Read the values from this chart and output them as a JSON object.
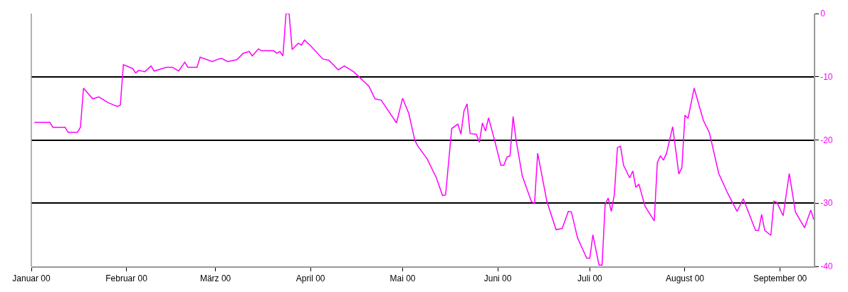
{
  "chart_data": {
    "type": "line",
    "x": [
      "2000-01-02",
      "2000-01-07",
      "2000-01-08",
      "2000-01-12",
      "2000-01-13",
      "2000-01-16",
      "2000-01-17",
      "2000-01-18",
      "2000-01-21",
      "2000-01-23",
      "2000-01-26",
      "2000-01-29",
      "2000-01-30",
      "2000-01-31",
      "2000-02-03",
      "2000-02-04",
      "2000-02-05",
      "2000-02-07",
      "2000-02-09",
      "2000-02-10",
      "2000-02-14",
      "2000-02-16",
      "2000-02-18",
      "2000-02-20",
      "2000-02-21",
      "2000-02-24",
      "2000-02-25",
      "2000-02-29",
      "2000-03-02",
      "2000-03-03",
      "2000-03-05",
      "2000-03-08",
      "2000-03-10",
      "2000-03-12",
      "2000-03-13",
      "2000-03-15",
      "2000-03-16",
      "2000-03-20",
      "2000-03-21",
      "2000-03-22",
      "2000-03-23",
      "2000-03-24",
      "2000-03-25",
      "2000-03-26",
      "2000-03-28",
      "2000-03-29",
      "2000-03-30",
      "2000-04-01",
      "2000-04-05",
      "2000-04-07",
      "2000-04-10",
      "2000-04-12",
      "2000-04-15",
      "2000-04-20",
      "2000-04-22",
      "2000-04-24",
      "2000-04-29",
      "2000-05-01",
      "2000-05-03",
      "2000-05-05",
      "2000-05-06",
      "2000-05-09",
      "2000-05-12",
      "2000-05-14",
      "2000-05-15",
      "2000-05-17",
      "2000-05-19",
      "2000-05-20",
      "2000-05-21",
      "2000-05-22",
      "2000-05-23",
      "2000-05-25",
      "2000-05-26",
      "2000-05-27",
      "2000-05-28",
      "2000-05-29",
      "2000-05-31",
      "2000-06-02",
      "2000-06-03",
      "2000-06-04",
      "2000-06-05",
      "2000-06-06",
      "2000-06-07",
      "2000-06-09",
      "2000-06-12",
      "2000-06-13",
      "2000-06-14",
      "2000-06-17",
      "2000-06-20",
      "2000-06-22",
      "2000-06-24",
      "2000-06-25",
      "2000-06-27",
      "2000-06-30",
      "2000-07-01",
      "2000-07-02",
      "2000-07-04",
      "2000-07-05",
      "2000-07-06",
      "2000-07-07",
      "2000-07-08",
      "2000-07-09",
      "2000-07-10",
      "2000-07-11",
      "2000-07-12",
      "2000-07-14",
      "2000-07-15",
      "2000-07-16",
      "2000-07-17",
      "2000-07-19",
      "2000-07-22",
      "2000-07-23",
      "2000-07-24",
      "2000-07-25",
      "2000-07-26",
      "2000-07-28",
      "2000-07-29",
      "2000-07-30",
      "2000-07-31",
      "2000-08-01",
      "2000-08-02",
      "2000-08-04",
      "2000-08-07",
      "2000-08-09",
      "2000-08-12",
      "2000-08-15",
      "2000-08-18",
      "2000-08-20",
      "2000-08-24",
      "2000-08-25",
      "2000-08-26",
      "2000-08-27",
      "2000-08-29",
      "2000-08-30",
      "2000-08-31",
      "2000-09-02",
      "2000-09-04",
      "2000-09-06",
      "2000-09-09",
      "2000-09-11",
      "2000-09-12"
    ],
    "series": [
      {
        "color": "#ff00ff",
        "values": [
          -17.2,
          -17.2,
          -18.0,
          -18.0,
          -18.8,
          -18.8,
          -18.0,
          -11.8,
          -13.5,
          -13.2,
          -14.1,
          -14.7,
          -14.5,
          -8.1,
          -8.7,
          -9.4,
          -9.0,
          -9.2,
          -8.3,
          -9.1,
          -8.5,
          -8.5,
          -9.1,
          -7.7,
          -8.5,
          -8.5,
          -6.9,
          -7.6,
          -7.2,
          -7.1,
          -7.6,
          -7.3,
          -6.3,
          -6.0,
          -6.7,
          -5.6,
          -5.9,
          -5.9,
          -6.3,
          -6.0,
          -6.7,
          0,
          0,
          -5.7,
          -4.7,
          -5.0,
          -4.2,
          -5.1,
          -7.2,
          -7.4,
          -8.9,
          -8.3,
          -9.2,
          -11.5,
          -13.5,
          -13.7,
          -17.3,
          -13.4,
          -15.8,
          -20.1,
          -21.0,
          -23.0,
          -26.0,
          -28.8,
          -28.7,
          -18.2,
          -17.5,
          -19.1,
          -15.4,
          -14.3,
          -19.0,
          -19.1,
          -20.4,
          -17.3,
          -18.6,
          -16.5,
          -20.1,
          -24.0,
          -24.0,
          -22.7,
          -22.5,
          -16.3,
          -20.1,
          -25.7,
          -29.8,
          -30.0,
          -22.1,
          -29.7,
          -34.2,
          -34.0,
          -31.3,
          -31.4,
          -35.5,
          -38.7,
          -38.7,
          -35.0,
          -39.8,
          -39.8,
          -30.2,
          -29.2,
          -31.3,
          -28.6,
          -21.2,
          -21.0,
          -24.0,
          -26.0,
          -24.9,
          -27.5,
          -27.0,
          -30.5,
          -32.8,
          -23.6,
          -22.5,
          -23.2,
          -22.1,
          -17.9,
          -21.6,
          -25.4,
          -24.4,
          -16.1,
          -16.6,
          -11.8,
          -16.9,
          -18.9,
          -25.3,
          -28.5,
          -31.3,
          -29.3,
          -34.3,
          -34.3,
          -31.8,
          -34.3,
          -35.1,
          -29.7,
          -29.9,
          -32.0,
          -25.3,
          -31.4,
          -33.9,
          -31.1,
          -32.6
        ]
      }
    ],
    "xlim": [
      "2000-01-01",
      "2000-09-12"
    ],
    "xticks": [
      {
        "value": "2000-01-01",
        "label": "Januar 00"
      },
      {
        "value": "2000-02-01",
        "label": "Februar 00"
      },
      {
        "value": "2000-03-01",
        "label": "März 00"
      },
      {
        "value": "2000-04-01",
        "label": "April 00"
      },
      {
        "value": "2000-05-01",
        "label": "Mai 00"
      },
      {
        "value": "2000-06-01",
        "label": "Juni 00"
      },
      {
        "value": "2000-07-01",
        "label": "Juli 00"
      },
      {
        "value": "2000-08-01",
        "label": "August 00"
      },
      {
        "value": "2000-09-01",
        "label": "September 00"
      }
    ],
    "ylim": [
      -40,
      0
    ],
    "yticks": [
      0,
      -10,
      -20,
      -30,
      -40
    ],
    "grid": "y",
    "marker": "none",
    "line_style": "solid"
  }
}
